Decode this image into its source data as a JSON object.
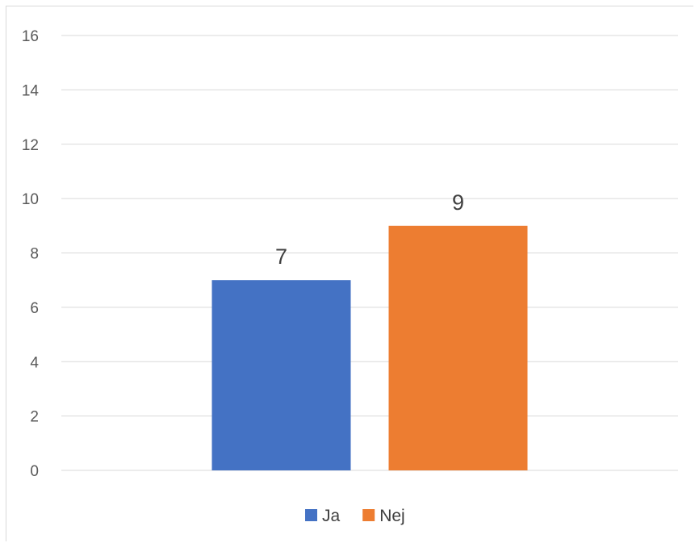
{
  "chart_data": {
    "type": "bar",
    "categories": [
      ""
    ],
    "series": [
      {
        "name": "Ja",
        "values": [
          7
        ],
        "color": "#4472c4"
      },
      {
        "name": "Nej",
        "values": [
          9
        ],
        "color": "#ed7d31"
      }
    ],
    "data_labels": [
      "7",
      "9"
    ],
    "title": "",
    "xlabel": "",
    "ylabel": "",
    "ylim": [
      0,
      16
    ],
    "yticks": [
      "0",
      "2",
      "4",
      "6",
      "8",
      "10",
      "12",
      "14",
      "16"
    ],
    "grid": true,
    "legend": "bottom",
    "gridline_color": "#d9d9d9"
  }
}
